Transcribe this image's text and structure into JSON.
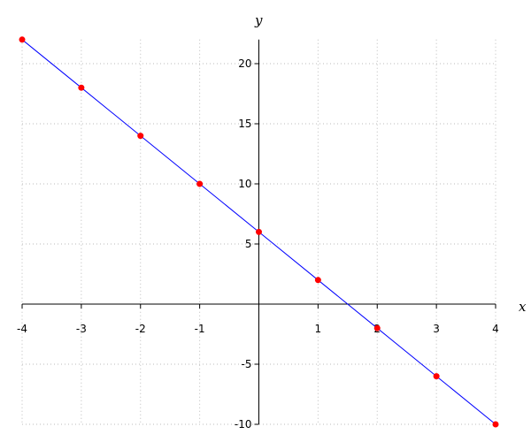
{
  "chart_data": {
    "type": "line",
    "xlabel": "x",
    "ylabel": "y",
    "xlim": [
      -4,
      4
    ],
    "ylim": [
      -10,
      22
    ],
    "xticks": [
      -4,
      -3,
      -2,
      -1,
      1,
      2,
      3,
      4
    ],
    "yticks": [
      -10,
      -5,
      5,
      10,
      15,
      20
    ],
    "grid": true,
    "series": [
      {
        "x": [
          -4,
          -3,
          -2,
          -1,
          0,
          1,
          2,
          3,
          4
        ],
        "y": [
          22,
          18,
          14,
          10,
          6,
          2,
          -2,
          -6,
          -10
        ],
        "line_color": "#0000ff",
        "marker_color": "#ff0000"
      }
    ]
  }
}
